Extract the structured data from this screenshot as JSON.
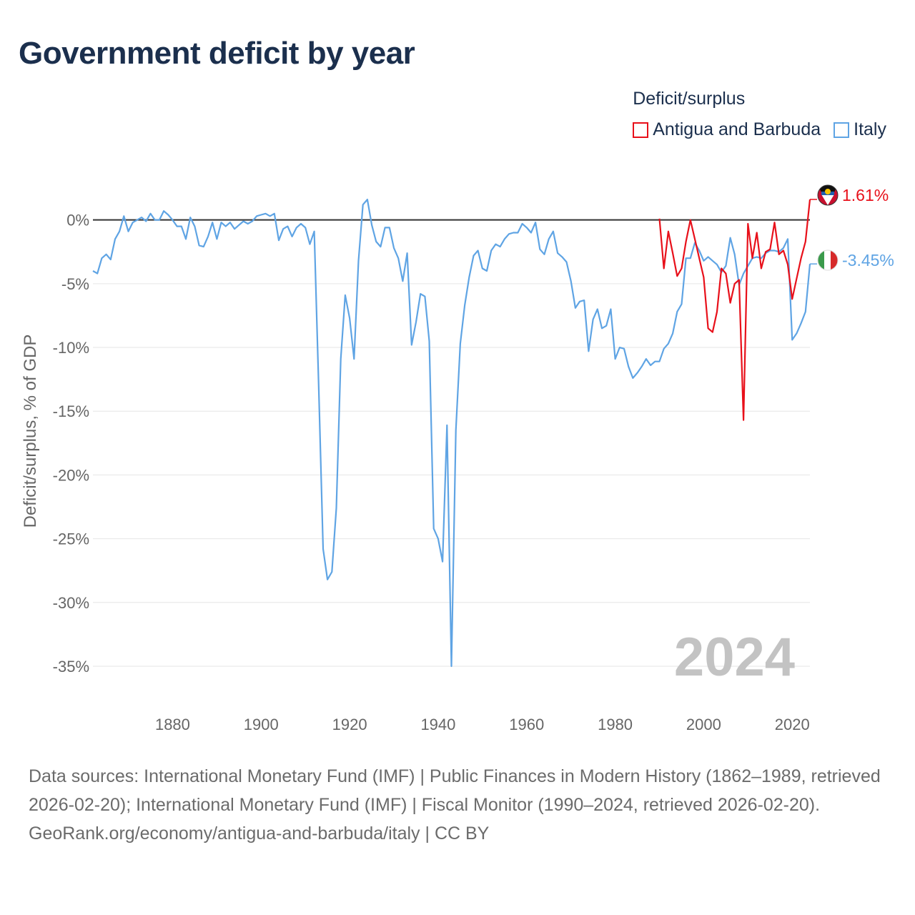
{
  "title": "Government deficit by year",
  "legend": {
    "title": "Deficit/surplus",
    "items": [
      {
        "label": "Antigua and Barbuda",
        "color": "#e8101a"
      },
      {
        "label": "Italy",
        "color": "#5fa4e4"
      }
    ]
  },
  "footer": {
    "sources": "Data sources: International Monetary Fund (IMF) | Public Finances in Modern History (1862–1989, retrieved 2026-02-20); International Monetary Fund (IMF) | Fiscal Monitor (1990–2024, retrieved 2026-02-20).",
    "credit": "GeoRank.org/economy/antigua-and-barbuda/italy | CC BY"
  },
  "chart_data": {
    "type": "line",
    "title": "Government deficit by year",
    "xlabel": "",
    "ylabel": "Deficit/surplus, % of GDP",
    "xlim": [
      1862,
      2024
    ],
    "ylim": [
      -35,
      2
    ],
    "xticks": [
      1880,
      1900,
      1920,
      1940,
      1960,
      1980,
      2000,
      2020
    ],
    "yticks": [
      0,
      -5,
      -10,
      -15,
      -20,
      -25,
      -30,
      -35
    ],
    "ytick_labels": [
      "0%",
      "-5%",
      "-10%",
      "-15%",
      "-20%",
      "-25%",
      "-30%",
      "-35%"
    ],
    "year_label": "2024",
    "series": [
      {
        "name": "Italy",
        "color": "#5fa4e4",
        "end_label": "-3.45%",
        "flag": "italy-flag",
        "x": [
          1862,
          1863,
          1864,
          1865,
          1866,
          1867,
          1868,
          1869,
          1870,
          1871,
          1872,
          1873,
          1874,
          1875,
          1876,
          1877,
          1878,
          1879,
          1880,
          1881,
          1882,
          1883,
          1884,
          1885,
          1886,
          1887,
          1888,
          1889,
          1890,
          1891,
          1892,
          1893,
          1894,
          1895,
          1896,
          1897,
          1898,
          1899,
          1900,
          1901,
          1902,
          1903,
          1904,
          1905,
          1906,
          1907,
          1908,
          1909,
          1910,
          1911,
          1912,
          1913,
          1914,
          1915,
          1916,
          1917,
          1918,
          1919,
          1920,
          1921,
          1922,
          1923,
          1924,
          1925,
          1926,
          1927,
          1928,
          1929,
          1930,
          1931,
          1932,
          1933,
          1934,
          1935,
          1936,
          1937,
          1938,
          1939,
          1940,
          1941,
          1942,
          1943,
          1944,
          1945,
          1946,
          1947,
          1948,
          1949,
          1950,
          1951,
          1952,
          1953,
          1954,
          1955,
          1956,
          1957,
          1958,
          1959,
          1960,
          1961,
          1962,
          1963,
          1964,
          1965,
          1966,
          1967,
          1968,
          1969,
          1970,
          1971,
          1972,
          1973,
          1974,
          1975,
          1976,
          1977,
          1978,
          1979,
          1980,
          1981,
          1982,
          1983,
          1984,
          1985,
          1986,
          1987,
          1988,
          1989,
          1990,
          1991,
          1992,
          1993,
          1994,
          1995,
          1996,
          1997,
          1998,
          1999,
          2000,
          2001,
          2002,
          2003,
          2004,
          2005,
          2006,
          2007,
          2008,
          2009,
          2010,
          2011,
          2012,
          2013,
          2014,
          2015,
          2016,
          2017,
          2018,
          2019,
          2020,
          2021,
          2022,
          2023,
          2024
        ],
        "values": [
          -4.0,
          -4.2,
          -3.0,
          -2.7,
          -3.1,
          -1.5,
          -0.9,
          0.3,
          -0.9,
          -0.2,
          0.0,
          0.2,
          -0.1,
          0.5,
          0.0,
          0.0,
          0.7,
          0.4,
          0.0,
          -0.5,
          -0.5,
          -1.5,
          0.2,
          -0.5,
          -2.0,
          -2.1,
          -1.3,
          -0.2,
          -1.5,
          -0.2,
          -0.5,
          -0.2,
          -0.7,
          -0.4,
          -0.1,
          -0.3,
          -0.1,
          0.3,
          0.4,
          0.5,
          0.3,
          0.5,
          -1.6,
          -0.7,
          -0.5,
          -1.3,
          -0.6,
          -0.3,
          -0.6,
          -1.9,
          -0.9,
          -13.0,
          -25.8,
          -28.2,
          -27.6,
          -22.6,
          -10.9,
          -5.9,
          -7.7,
          -10.9,
          -3.2,
          1.2,
          1.6,
          -0.4,
          -1.7,
          -2.1,
          -0.6,
          -0.6,
          -2.2,
          -3.0,
          -4.8,
          -2.6,
          -9.8,
          -8.0,
          -5.8,
          -6.0,
          -9.5,
          -24.2,
          -25.0,
          -26.8,
          -16.1,
          -35.0,
          -16.5,
          -9.7,
          -6.7,
          -4.5,
          -2.8,
          -2.4,
          -3.8,
          -4.0,
          -2.4,
          -1.9,
          -2.1,
          -1.5,
          -1.1,
          -1.0,
          -1.0,
          -0.3,
          -0.6,
          -1.0,
          -0.2,
          -2.3,
          -2.7,
          -1.5,
          -0.9,
          -2.6,
          -2.9,
          -3.3,
          -4.8,
          -6.9,
          -6.4,
          -6.3,
          -10.3,
          -7.8,
          -7.0,
          -8.5,
          -8.3,
          -7.0,
          -10.9,
          -10.0,
          -10.1,
          -11.5,
          -12.4,
          -12.0,
          -11.5,
          -10.9,
          -11.4,
          -11.1,
          -11.1,
          -10.1,
          -9.7,
          -8.9,
          -7.2,
          -6.6,
          -3.0,
          -3.0,
          -1.8,
          -2.4,
          -3.2,
          -2.9,
          -3.2,
          -3.5,
          -4.1,
          -3.6,
          -1.4,
          -2.7,
          -5.1,
          -4.2,
          -3.6,
          -3.0,
          -2.9,
          -3.0,
          -2.6,
          -2.4,
          -2.4,
          -2.5,
          -2.2,
          -1.5,
          -9.4,
          -8.9,
          -8.1,
          -7.2,
          -3.45
        ]
      },
      {
        "name": "Antigua and Barbuda",
        "color": "#e8101a",
        "end_label": "1.61%",
        "flag": "antigua-flag",
        "x": [
          1990,
          1991,
          1992,
          1993,
          1994,
          1995,
          1996,
          1997,
          1998,
          1999,
          2000,
          2001,
          2002,
          2003,
          2004,
          2005,
          2006,
          2007,
          2008,
          2009,
          2010,
          2011,
          2012,
          2013,
          2014,
          2015,
          2016,
          2017,
          2018,
          2019,
          2020,
          2021,
          2022,
          2023,
          2024
        ],
        "values": [
          0.1,
          -3.8,
          -0.9,
          -2.6,
          -4.4,
          -3.8,
          -1.7,
          0.0,
          -1.5,
          -3.0,
          -4.5,
          -8.5,
          -8.8,
          -7.2,
          -3.8,
          -4.2,
          -6.5,
          -5.0,
          -4.7,
          -15.7,
          -0.3,
          -3.0,
          -1.0,
          -3.8,
          -2.5,
          -2.3,
          -0.2,
          -2.7,
          -2.4,
          -3.5,
          -6.2,
          -4.6,
          -3.0,
          -1.7,
          1.61
        ]
      }
    ]
  }
}
